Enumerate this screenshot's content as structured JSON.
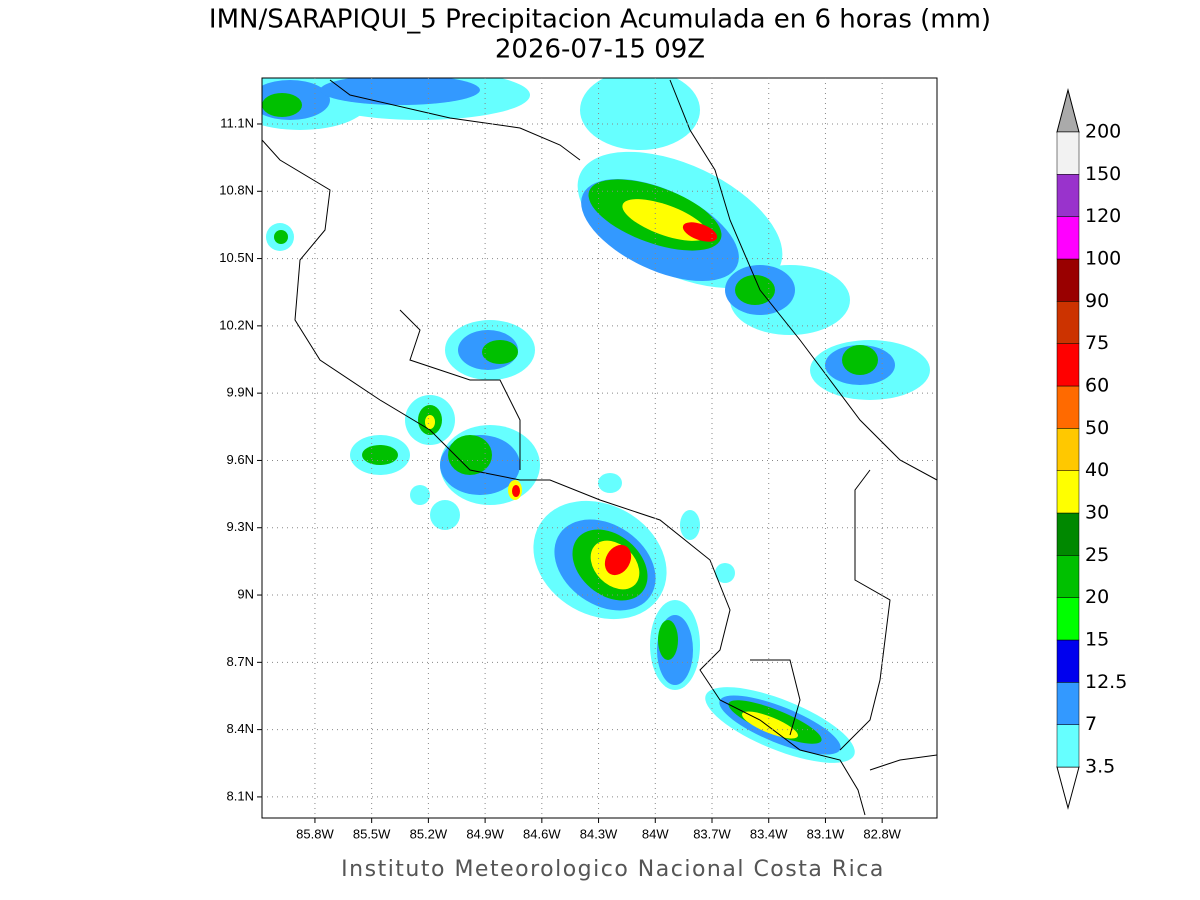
{
  "title": "IMN/SARAPIQUI_5 Precipitacion Acumulada en 6 horas (mm)",
  "subtitle": "2026-07-15 09Z",
  "footer": "Instituto Meteorologico Nacional Costa Rica",
  "map": {
    "xlim": [
      -86.08,
      -82.51
    ],
    "ylim": [
      8.006,
      11.305
    ],
    "grid": true,
    "xticks": [
      {
        "value": -85.8,
        "label": "85.8W"
      },
      {
        "value": -85.5,
        "label": "85.5W"
      },
      {
        "value": -85.2,
        "label": "85.2W"
      },
      {
        "value": -84.9,
        "label": "84.9W"
      },
      {
        "value": -84.6,
        "label": "84.6W"
      },
      {
        "value": -84.3,
        "label": "84.3W"
      },
      {
        "value": -84,
        "label": "84W"
      },
      {
        "value": -83.7,
        "label": "83.7W"
      },
      {
        "value": -83.4,
        "label": "83.4W"
      },
      {
        "value": -83.1,
        "label": "83.1W"
      },
      {
        "value": -82.8,
        "label": "82.8W"
      }
    ],
    "yticks": [
      {
        "value": 8.1,
        "label": "8.1N"
      },
      {
        "value": 8.4,
        "label": "8.4N"
      },
      {
        "value": 8.7,
        "label": "8.7N"
      },
      {
        "value": 9,
        "label": "9N"
      },
      {
        "value": 9.3,
        "label": "9.3N"
      },
      {
        "value": 9.6,
        "label": "9.6N"
      },
      {
        "value": 9.9,
        "label": "9.9N"
      },
      {
        "value": 10.2,
        "label": "10.2N"
      },
      {
        "value": 10.5,
        "label": "10.5N"
      },
      {
        "value": 10.8,
        "label": "10.8N"
      },
      {
        "value": 11.1,
        "label": "11.1N"
      }
    ]
  },
  "colorbar": {
    "levels": [
      3.5,
      7,
      12.5,
      15,
      20,
      25,
      30,
      40,
      50,
      60,
      75,
      90,
      100,
      120,
      150,
      200
    ],
    "colors": [
      "#66ffff",
      "#3399ff",
      "#0000ee",
      "#00ff00",
      "#00c000",
      "#008800",
      "#ffff00",
      "#ffc800",
      "#ff6a00",
      "#ff0000",
      "#cc3300",
      "#990000",
      "#ff00ff",
      "#9933cc",
      "#f2f2f2"
    ],
    "under_color": "#ffffff",
    "over_color": "#aaaaaa"
  }
}
